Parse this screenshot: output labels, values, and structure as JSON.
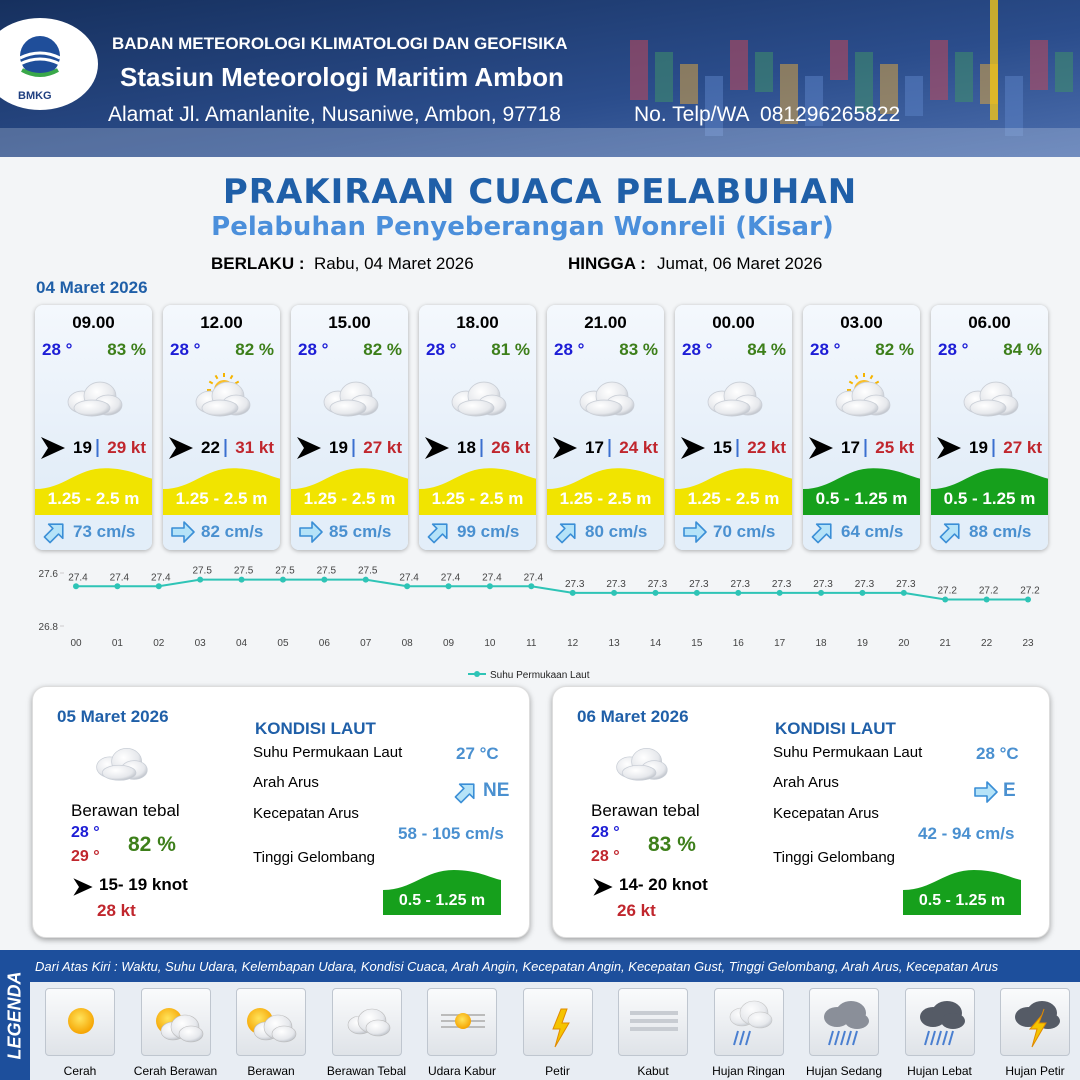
{
  "header": {
    "logo": "BMKG",
    "agency": "BADAN METEOROLOGI KLIMATOLOGI DAN GEOFISIKA",
    "station": "Stasiun Meteorologi Maritim Ambon",
    "address": "Alamat Jl. Amanlanite, Nusaniwe, Ambon, 97718",
    "phone": "No. Telp/WA  081296265822"
  },
  "title": "PRAKIRAAN CUACA PELABUHAN",
  "subtitle": "Pelabuhan Penyeberangan Wonreli (Kisar)",
  "validity": {
    "from_label": "BERLAKU :",
    "from": "Rabu, 04 Maret 2026",
    "to_label": "HINGGA :",
    "to": "Jumat, 06 Maret 2026"
  },
  "today": {
    "date": "04 Maret 2026",
    "slots": [
      {
        "time": "09.00",
        "temp": "28 °",
        "humidity": "83 %",
        "wind": "19",
        "gust": "29 kt",
        "wave": "1.25 - 2.5 m",
        "wave_color": "#f1e400",
        "current": "73 cm/s"
      },
      {
        "time": "12.00",
        "temp": "28 °",
        "humidity": "82 %",
        "wind": "22",
        "gust": "31 kt",
        "wave": "1.25 - 2.5 m",
        "wave_color": "#f1e400",
        "current": "82 cm/s"
      },
      {
        "time": "15.00",
        "temp": "28 °",
        "humidity": "82 %",
        "wind": "19",
        "gust": "27 kt",
        "wave": "1.25 - 2.5 m",
        "wave_color": "#f1e400",
        "current": "85 cm/s"
      },
      {
        "time": "18.00",
        "temp": "28 °",
        "humidity": "81 %",
        "wind": "18",
        "gust": "26 kt",
        "wave": "1.25 - 2.5 m",
        "wave_color": "#f1e400",
        "current": "99 cm/s"
      },
      {
        "time": "21.00",
        "temp": "28 °",
        "humidity": "83 %",
        "wind": "17",
        "gust": "24 kt",
        "wave": "1.25 - 2.5 m",
        "wave_color": "#f1e400",
        "current": "80 cm/s"
      },
      {
        "time": "00.00",
        "temp": "28 °",
        "humidity": "84 %",
        "wind": "15",
        "gust": "22 kt",
        "wave": "1.25 - 2.5 m",
        "wave_color": "#f1e400",
        "current": "70 cm/s"
      },
      {
        "time": "03.00",
        "temp": "28 °",
        "humidity": "82 %",
        "wind": "17",
        "gust": "25 kt",
        "wave": "0.5 - 1.25 m",
        "wave_color": "#16a01c",
        "current": "64 cm/s"
      },
      {
        "time": "06.00",
        "temp": "28 °",
        "humidity": "84 %",
        "wind": "19",
        "gust": "27 kt",
        "wave": "0.5 - 1.25 m",
        "wave_color": "#16a01c",
        "current": "88 cm/s"
      }
    ]
  },
  "chart_data": {
    "type": "line",
    "categories": [
      "00",
      "01",
      "02",
      "03",
      "04",
      "05",
      "06",
      "07",
      "08",
      "09",
      "10",
      "11",
      "12",
      "13",
      "14",
      "15",
      "16",
      "17",
      "18",
      "19",
      "20",
      "21",
      "22",
      "23"
    ],
    "series": [
      {
        "name": "Suhu Permukaan Laut",
        "color": "#2ec4b6",
        "values": [
          27.4,
          27.4,
          27.4,
          27.5,
          27.5,
          27.5,
          27.5,
          27.5,
          27.4,
          27.4,
          27.4,
          27.4,
          27.3,
          27.3,
          27.3,
          27.3,
          27.3,
          27.3,
          27.3,
          27.3,
          27.3,
          27.2,
          27.2,
          27.2
        ]
      }
    ],
    "ylim": [
      26.8,
      27.6
    ],
    "yticks": [
      26.8,
      27.6
    ]
  },
  "days": [
    {
      "date": "05 Maret 2026",
      "condition": "Berawan tebal",
      "temp_min": "28 °",
      "temp_max": "29 °",
      "humidity": "82 %",
      "wind": "15- 19 knot",
      "gust": "28 kt",
      "sea": {
        "title": "KONDISI LAUT",
        "sst_label": "Suhu Permukaan Laut",
        "sst": "27 °C",
        "direction_label": "Arah Arus",
        "direction": "NE",
        "speed_label": "Kecepatan Arus",
        "speed": "58 - 105 cm/s",
        "wave_label": "Tinggi Gelombang",
        "wave": "0.5 - 1.25 m"
      }
    },
    {
      "date": "06 Maret 2026",
      "condition": "Berawan tebal",
      "temp_min": "28 °",
      "temp_max": "28 °",
      "humidity": "83 %",
      "wind": "14- 20 knot",
      "gust": "26 kt",
      "sea": {
        "title": "KONDISI LAUT",
        "sst_label": "Suhu Permukaan Laut",
        "sst": "28 °C",
        "direction_label": "Arah Arus",
        "direction": "E",
        "speed_label": "Kecepatan Arus",
        "speed": "42 - 94 cm/s",
        "wave_label": "Tinggi Gelombang",
        "wave": "0.5 - 1.25 m"
      }
    }
  ],
  "legend": {
    "title": "LEGENDA",
    "description": "Dari Atas Kiri : Waktu, Suhu Udara, Kelembapan Udara, Kondisi Cuaca, Arah Angin, Kecepatan Angin, Kecepatan Gust, Tinggi Gelombang, Arah Arus, Kecepatan Arus",
    "items": [
      "Cerah",
      "Cerah Berawan",
      "Berawan",
      "Berawan Tebal",
      "Udara Kabur",
      "Petir",
      "Kabut",
      "Hujan Ringan",
      "Hujan Sedang",
      "Hujan Lebat",
      "Hujan Petir"
    ]
  }
}
